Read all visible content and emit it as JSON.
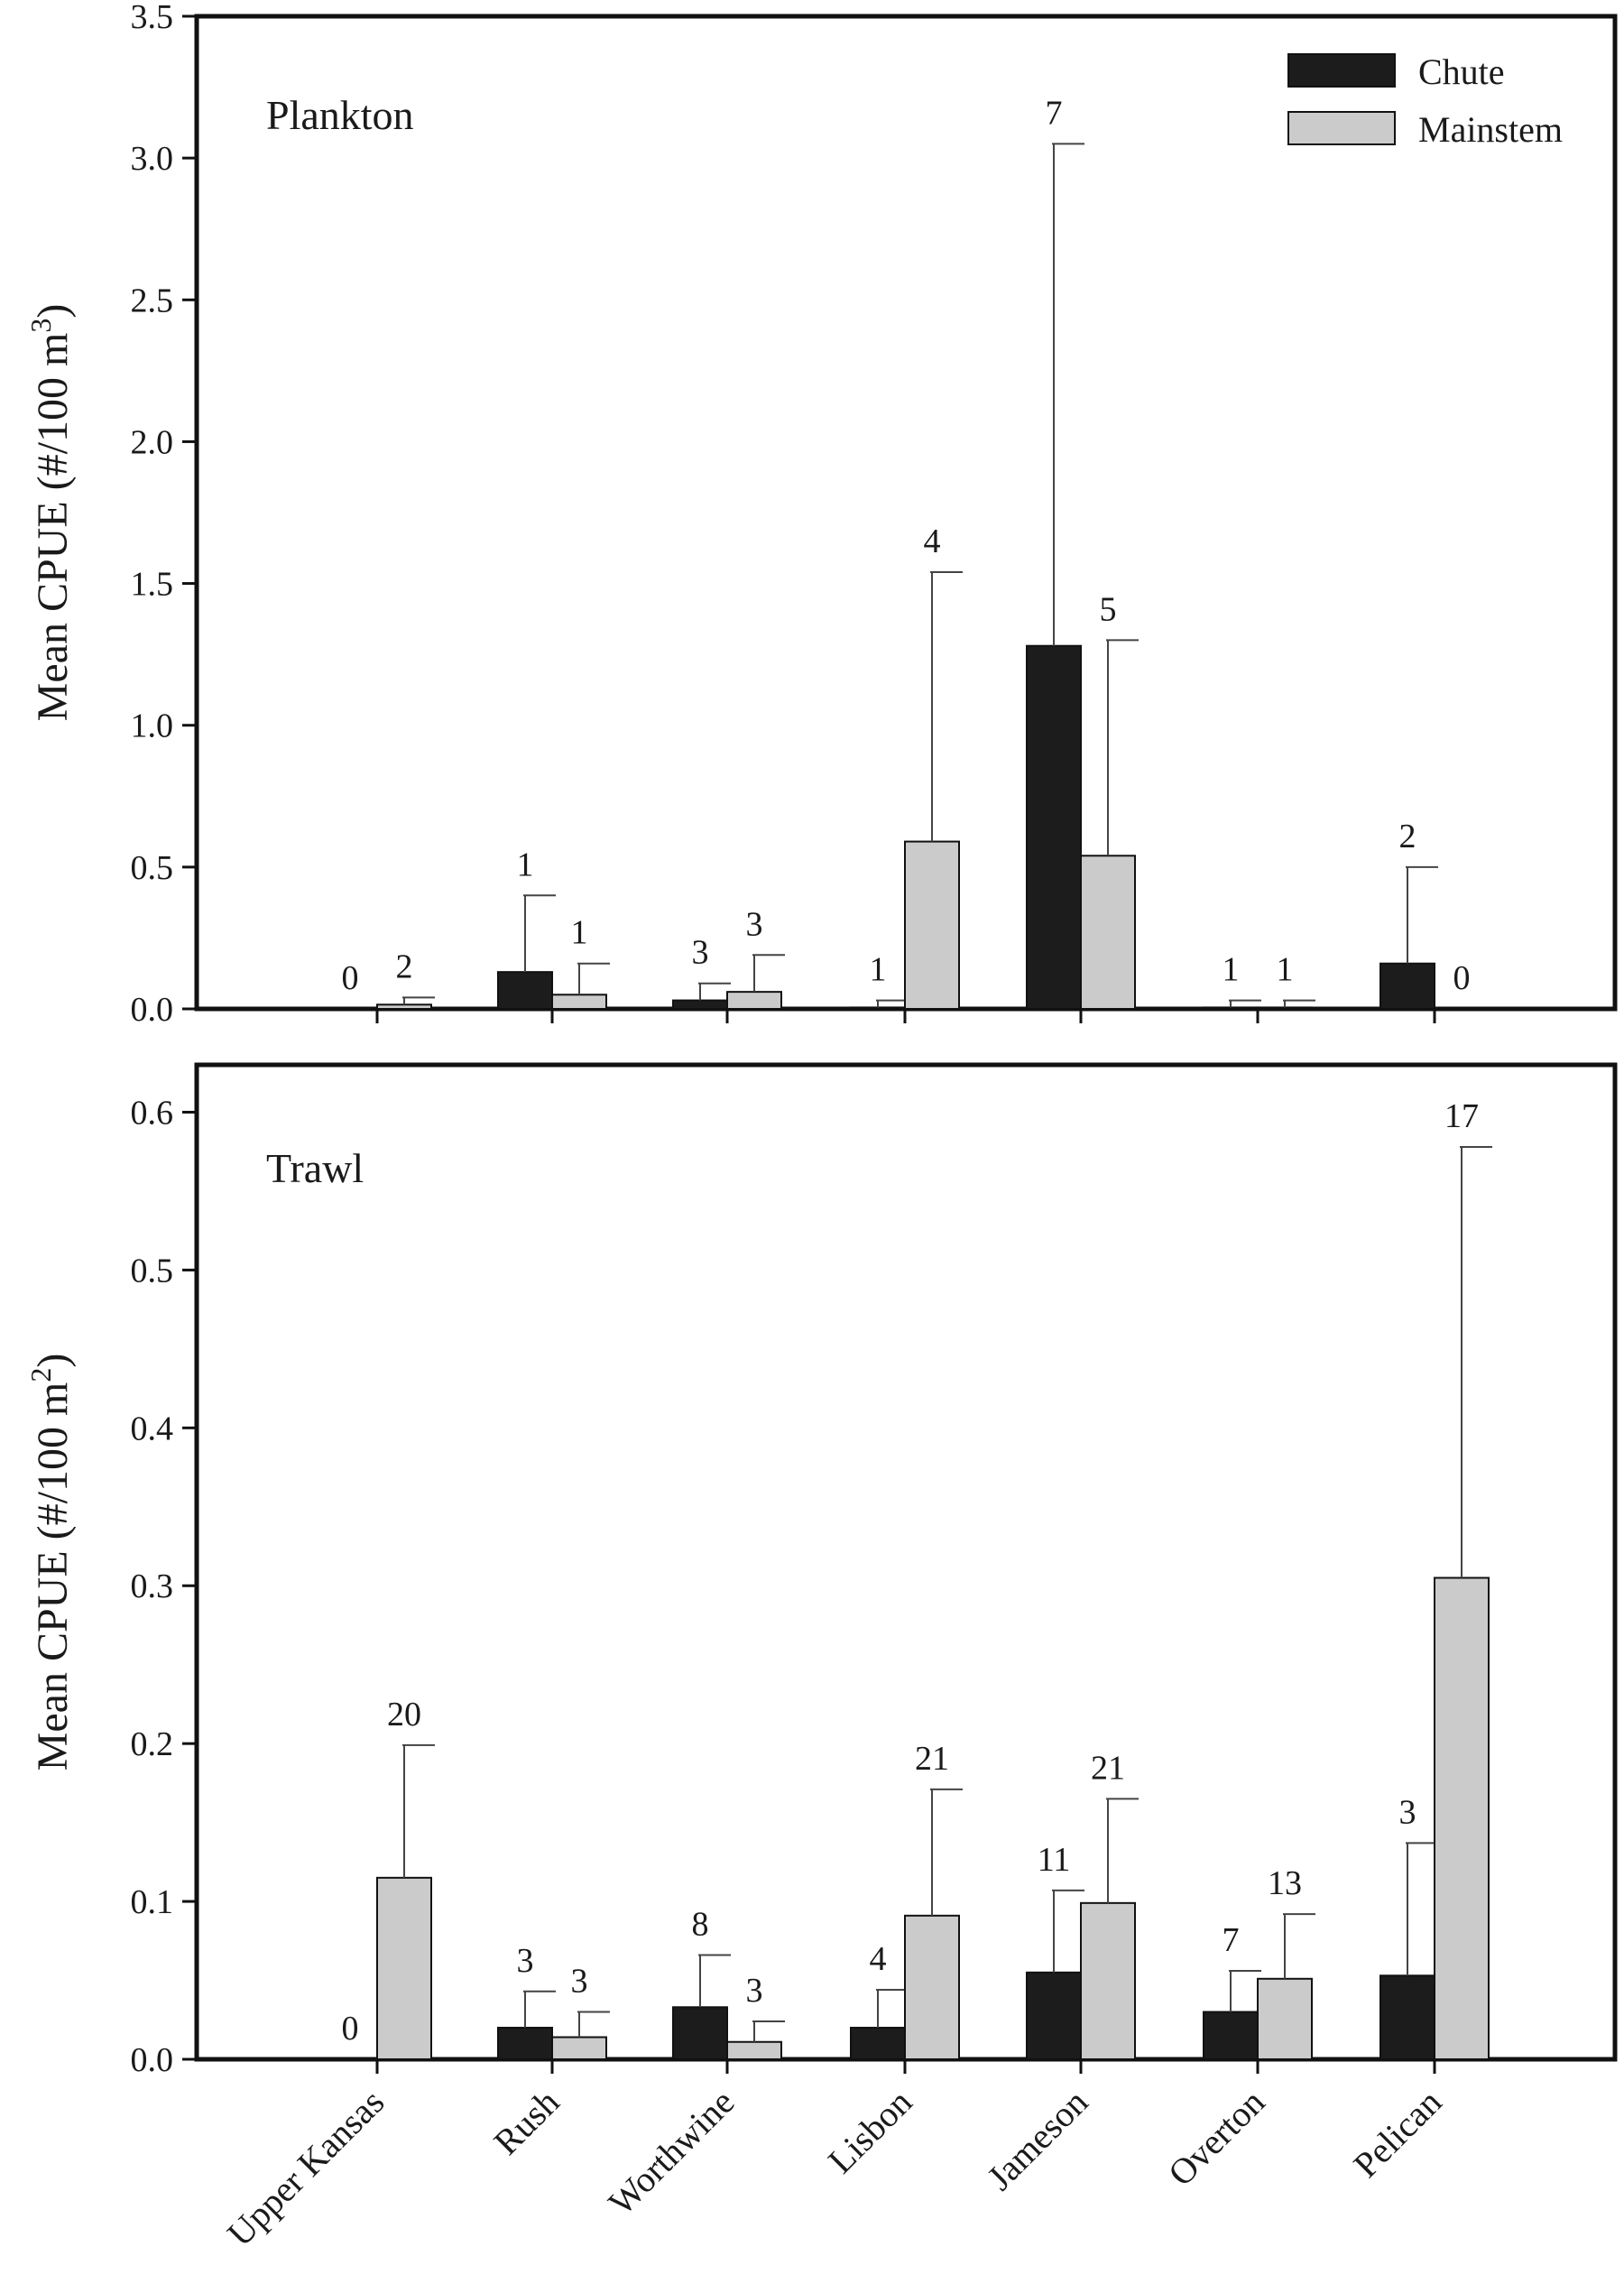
{
  "legend": {
    "entries": [
      {
        "name": "Chute",
        "color": "#1c1c1c"
      },
      {
        "name": "Mainstem",
        "color": "#cbcbcb"
      }
    ]
  },
  "chart_data": [
    {
      "type": "bar",
      "panel_label": "Plankton",
      "ylabel": "Mean CPUE (#/100 m",
      "ylabel_sup": "3",
      "ylabel_end": ")",
      "ylim": [
        0,
        3.5
      ],
      "yticks": [
        "0.0",
        "0.5",
        "1.0",
        "1.5",
        "2.0",
        "2.5",
        "3.0",
        "3.5"
      ],
      "categories": [
        "Upper Kansas",
        "Rush",
        "Worthwine",
        "Lisbon",
        "Jameson",
        "Overton",
        "Pelican"
      ],
      "series": [
        {
          "name": "Chute",
          "values": [
            0,
            0.13,
            0.03,
            0.005,
            1.28,
            0.005,
            0.16
          ],
          "err": [
            0,
            0.4,
            0.09,
            0.03,
            3.05,
            0.03,
            0.5
          ],
          "n": [
            "0",
            "1",
            "3",
            "1",
            "7",
            "1",
            "2"
          ]
        },
        {
          "name": "Mainstem",
          "values": [
            0.015,
            0.05,
            0.06,
            0.59,
            0.54,
            0.005,
            0
          ],
          "err": [
            0.04,
            0.16,
            0.19,
            1.54,
            1.3,
            0.03,
            0
          ],
          "n": [
            "2",
            "1",
            "3",
            "4",
            "5",
            "1",
            "0"
          ]
        }
      ],
      "legend_position": "top-right"
    },
    {
      "type": "bar",
      "panel_label": "Trawl",
      "ylabel": "Mean CPUE (#/100 m",
      "ylabel_sup": "2",
      "ylabel_end": ")",
      "ylim": [
        0,
        0.63
      ],
      "yticks": [
        "0.0",
        "0.1",
        "0.2",
        "0.3",
        "0.4",
        "0.5",
        "0.6"
      ],
      "categories": [
        "Upper Kansas",
        "Rush",
        "Worthwine",
        "Lisbon",
        "Jameson",
        "Overton",
        "Pelican"
      ],
      "series": [
        {
          "name": "Chute",
          "values": [
            0,
            0.02,
            0.033,
            0.02,
            0.055,
            0.03,
            0.053
          ],
          "err": [
            0,
            0.043,
            0.066,
            0.044,
            0.107,
            0.056,
            0.137
          ],
          "n": [
            "0",
            "3",
            "8",
            "4",
            "11",
            "7",
            "3"
          ]
        },
        {
          "name": "Mainstem",
          "values": [
            0.115,
            0.014,
            0.011,
            0.091,
            0.099,
            0.051,
            0.305
          ],
          "err": [
            0.199,
            0.03,
            0.024,
            0.171,
            0.165,
            0.092,
            0.578
          ],
          "n": [
            "20",
            "3",
            "3",
            "21",
            "21",
            "13",
            "17"
          ]
        }
      ]
    }
  ]
}
